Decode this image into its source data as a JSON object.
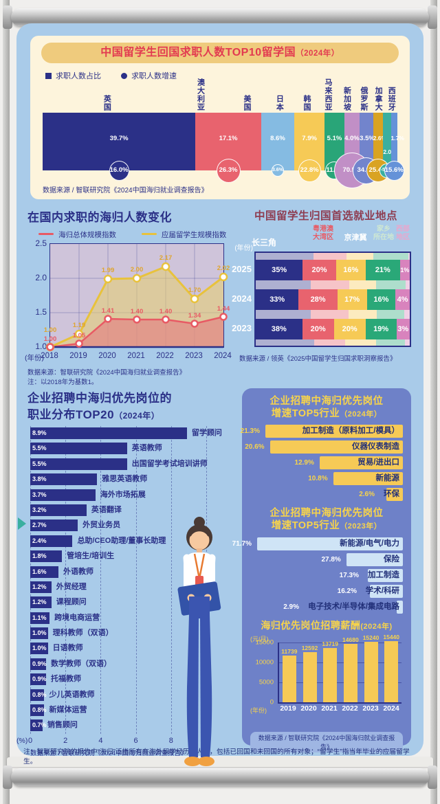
{
  "footnote": "注：智联研究院的报告中“海归”泛指所有有海外留学经历的人才，包括已回国和未回国的所有对象；“留学生”指当年毕业的应届留学生。",
  "chart_data": [
    {
      "id": "top10",
      "type": "bar",
      "title": "中国留学生回国求职人数TOP10留学国",
      "suffix": "（2024年）",
      "legend": [
        "求职人数占比",
        "求职人数增速"
      ],
      "source": "数据来源 / 智联研究院《2024中国海归就业调查报告》",
      "series": [
        {
          "name": "英国",
          "share": 39.7,
          "growth": 16.0,
          "color": "#2b3087"
        },
        {
          "name": "澳大利亚",
          "share": 17.1,
          "growth": 26.3,
          "color": "#e8636e"
        },
        {
          "name": "美国",
          "share": 8.6,
          "growth": 3.6,
          "color": "#85bbe2"
        },
        {
          "name": "日本",
          "share": 7.9,
          "growth": 22.8,
          "color": "#f6ca56"
        },
        {
          "name": "韩国",
          "share": 5.1,
          "growth": 11.4,
          "color": "#29a578"
        },
        {
          "name": "马来西亚",
          "share": 4.0,
          "growth": 70.5,
          "color": "#c18fc6"
        },
        {
          "name": "新加坡",
          "share": 3.5,
          "growth": 34.9,
          "color": "#7284cc"
        },
        {
          "name": "俄罗斯",
          "share": 2.6,
          "growth": 25.4,
          "color": "#d9a322"
        },
        {
          "name": "加拿大",
          "share": 2.0,
          "growth": -5.9,
          "color": "#3aaf9f",
          "label_drop": true
        },
        {
          "name": "西班牙",
          "share": 1.7,
          "growth": 15.6,
          "color": "#6592d8"
        }
      ]
    },
    {
      "id": "returnee_index",
      "type": "line",
      "title": "在国内求职的海归人数变化",
      "x": [
        "2018",
        "2019",
        "2020",
        "2021",
        "2022",
        "2023",
        "2024"
      ],
      "xlabel": "(年份)",
      "ylim": [
        1.0,
        2.5
      ],
      "yticks": [
        1.0,
        1.5,
        2.0,
        2.5
      ],
      "series": [
        {
          "name": "海归总体规模指数",
          "color": "#e85a64",
          "fill": "rgba(229,115,125,0.55)",
          "values": [
            1.0,
            1.05,
            1.41,
            1.4,
            1.4,
            1.34,
            1.44
          ]
        },
        {
          "name": "应届留学生规模指数",
          "color": "#e8c23c",
          "fill": "rgba(232,208,110,0.55)",
          "values": [
            1.0,
            1.19,
            1.99,
            2.0,
            2.17,
            1.7,
            2.02
          ]
        }
      ],
      "source": "数据来源：智联研究院《2024中国海归就业调查报告》",
      "note": "注：以2018年为基数1。"
    },
    {
      "id": "locations",
      "type": "stacked-bar",
      "title": "中国留学生归国首选就业地点",
      "ylabel": "(年份)",
      "columns": [
        {
          "name": "长三角",
          "lines": [
            "长三角"
          ],
          "color": "#2b3087",
          "header_color": "#ffffff"
        },
        {
          "name": "粤港澳大湾区",
          "lines": [
            "粤港澳",
            "大湾区"
          ],
          "color": "#e8636e",
          "header_color": "#e85a64"
        },
        {
          "name": "京津冀",
          "lines": [
            "京津冀"
          ],
          "color": "#f6ca56",
          "header_color": "#ffffff"
        },
        {
          "name": "家乡所在地",
          "lines": [
            "家乡",
            "所在地"
          ],
          "color": "#2aa878",
          "header_color": "#cfe8d2"
        },
        {
          "name": "西部地区",
          "lines": [
            "西部",
            "地区"
          ],
          "color": "#d883bd",
          "header_color": "#eaa6cc"
        }
      ],
      "categories": [
        "2025",
        "2024",
        "2023"
      ],
      "values": [
        [
          35,
          20,
          16,
          21,
          1
        ],
        [
          33,
          28,
          17,
          16,
          4
        ],
        [
          38,
          20,
          20,
          19,
          3
        ]
      ],
      "source": "数据来源 / 领英《2025中国留学生归国求职洞察报告》"
    },
    {
      "id": "top20",
      "type": "bar-h",
      "title1": "企业招聘中海归优先岗位的",
      "title2": "职业分布TOP20",
      "suffix": "（2024年）",
      "xunit": "(%)",
      "xticks": [
        0,
        2,
        4,
        6,
        8,
        10
      ],
      "items": [
        {
          "label": "留学顾问",
          "value": 8.9
        },
        {
          "label": "英语教师",
          "value": 5.5
        },
        {
          "label": "出国留学考试培训讲师",
          "value": 5.5
        },
        {
          "label": "雅思英语教师",
          "value": 3.8
        },
        {
          "label": "海外市场拓展",
          "value": 3.7
        },
        {
          "label": "英语翻译",
          "value": 3.2
        },
        {
          "label": "外贸业务员",
          "value": 2.7
        },
        {
          "label": "总助/CEO助理/董事长助理",
          "value": 2.4
        },
        {
          "label": "管培生/培训生",
          "value": 1.8
        },
        {
          "label": "外语教师",
          "value": 1.6
        },
        {
          "label": "外贸经理",
          "value": 1.2
        },
        {
          "label": "课程顾问",
          "value": 1.2
        },
        {
          "label": "跨境电商运营",
          "value": 1.1
        },
        {
          "label": "理科教师（双语）",
          "value": 1.0
        },
        {
          "label": "日语教师",
          "value": 1.0
        },
        {
          "label": "数学教师（双语）",
          "value": 0.9
        },
        {
          "label": "托福教师",
          "value": 0.9
        },
        {
          "label": "少儿英语教师",
          "value": 0.8
        },
        {
          "label": "新媒体运营",
          "value": 0.8
        },
        {
          "label": "销售顾问",
          "value": 0.7
        }
      ],
      "source": "数据来源 / 智联研究院《2024中国海归就业调查报告》"
    },
    {
      "id": "top5_2024",
      "type": "bar-h",
      "title1": "企业招聘中海归优先岗位",
      "title2": "增速TOP5行业",
      "suffix": "（2024年）",
      "bar_color": "#f6ca56",
      "label_color": "#223079",
      "pct_color": "#f8d44a",
      "max": 21.3,
      "items": [
        {
          "label": "加工制造（原料加工/模具）",
          "value": 21.3
        },
        {
          "label": "仪器仪表制造",
          "value": 20.6
        },
        {
          "label": "贸易/进出口",
          "value": 12.9
        },
        {
          "label": "新能源",
          "value": 10.8
        },
        {
          "label": "环保",
          "value": 2.6
        }
      ]
    },
    {
      "id": "top5_2023",
      "type": "bar-h",
      "title1": "企业招聘中海归优先岗位",
      "title2": "增速TOP5行业",
      "suffix": "（2023年）",
      "bar_color": "#cfe4f6",
      "label_color": "#223079",
      "pct_color": "#ffffff",
      "max": 71.7,
      "items": [
        {
          "label": "新能源/电气/电力",
          "value": 71.7
        },
        {
          "label": "保险",
          "value": 27.8
        },
        {
          "label": "加工制造",
          "value": 17.3
        },
        {
          "label": "学术/科研",
          "value": 16.2
        },
        {
          "label": "电子技术/半导体/集成电路",
          "value": 2.9
        }
      ]
    },
    {
      "id": "salary",
      "type": "bar",
      "title": "海归优先岗位招聘薪酬",
      "suffix": "(2024年)",
      "ylabel": "(元/月)",
      "xlabel": "(年份)",
      "yticks": [
        0,
        5000,
        10000,
        15000
      ],
      "categories": [
        "2019",
        "2020",
        "2021",
        "2022",
        "2023",
        "2024"
      ],
      "values": [
        11739,
        12592,
        13719,
        14680,
        15240,
        15440
      ],
      "source": "数据来源 / 智联研究院《2024中国海归就业调查报告》"
    }
  ]
}
